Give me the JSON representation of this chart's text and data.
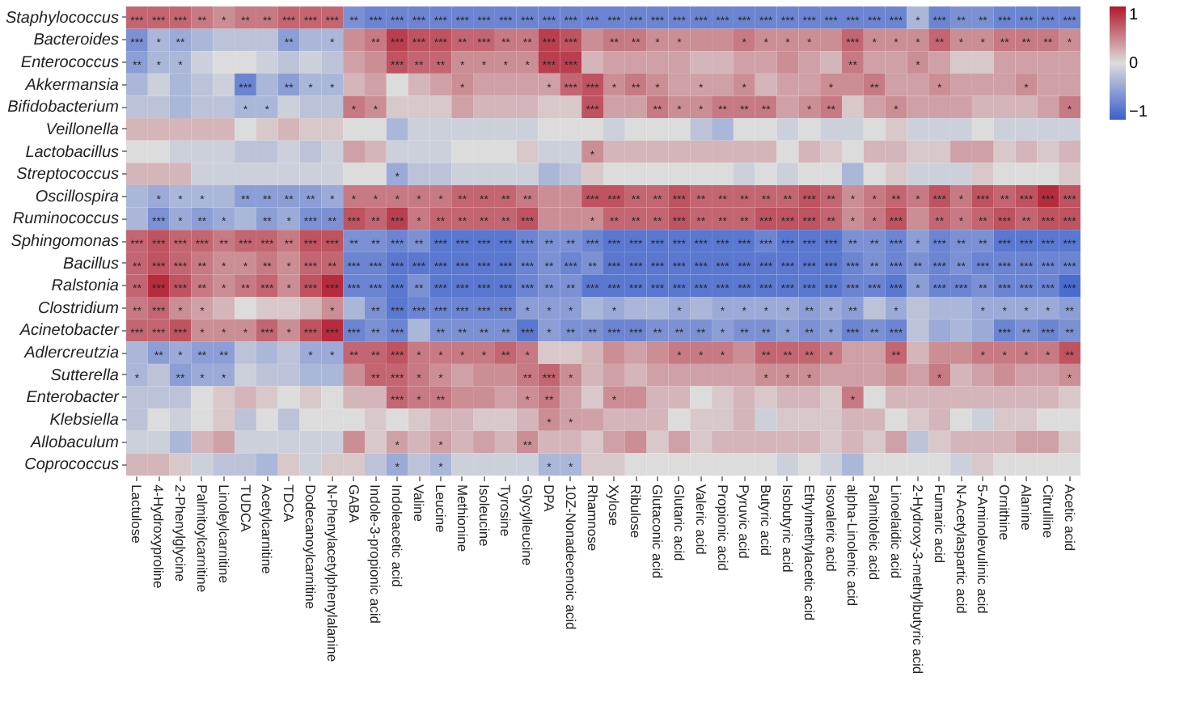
{
  "chart_data": {
    "type": "heatmap",
    "categories": [
      "Lactulose",
      "4-Hydroxyproline",
      "2-Phenylglycine",
      "Palmitoylcarnitine",
      "Linoleylcarnitine",
      "TUDCA",
      "Acetylcarnitine",
      "TDCA",
      "Dodecanoylcarnitine",
      "N-Phenylacetylphenylalanine",
      "GABA",
      "Indole-3-propionic acid",
      "Indoleacetic acid",
      "Valine",
      "Leucine",
      "Methionine",
      "Isoleucine",
      "Tyrosine",
      "Glycylleucine",
      "DPA",
      "10Z-Nonadecenoic acid",
      "Rhamnose",
      "Xylose",
      "Ribulose",
      "Glutaconic acid",
      "Glutaric acid",
      "Valeric acid",
      "Propionic acid",
      "Pyruvic acid",
      "Butyric acid",
      "Isobutyric acid",
      "Ethylmethylacetic acid",
      "Isovaleric acid",
      "alpha-Linolenic acid",
      "Palmitoleic acid",
      "Linoelaidic acid",
      "2-Hydroxy-3-methylbutyric acid",
      "Fumaric acid",
      "N-Acetylaspartic acid",
      "5-Aminolevulinic acid",
      "Ornithine",
      "Alanine",
      "Citrulline",
      "Acetic acid"
    ],
    "y_categories": [
      "Staphylococcus",
      "Bacteroides",
      "Enterococcus",
      "Akkermansia",
      "Bifidobacterium",
      "Veillonella",
      "Lactobacillus",
      "Streptococcus",
      "Oscillospira",
      "Ruminococcus",
      "Sphingomonas",
      "Bacillus",
      "Ralstonia",
      "Clostridium",
      "Acinetobacter",
      "Adlercreutzia",
      "Sutterella",
      "Enterobacter",
      "Klebsiella",
      "Allobaculum",
      "Coprococcus"
    ],
    "cells": [
      [
        0.6,
        0.6,
        0.6,
        0.5,
        0.4,
        0.5,
        0.5,
        0.6,
        0.6,
        0.6,
        -0.6,
        -0.7,
        -0.7,
        -0.7,
        -0.7,
        -0.7,
        -0.7,
        -0.7,
        -0.7,
        -0.7,
        -0.7,
        -0.7,
        -0.7,
        -0.7,
        -0.7,
        -0.7,
        -0.7,
        -0.7,
        -0.7,
        -0.7,
        -0.7,
        -0.7,
        -0.7,
        -0.7,
        -0.7,
        -0.7,
        -0.3,
        -0.7,
        -0.6,
        -0.6,
        -0.7,
        -0.7,
        -0.7,
        -0.7
      ],
      [
        -0.6,
        -0.3,
        -0.4,
        -0.3,
        -0.2,
        -0.2,
        -0.2,
        -0.5,
        -0.3,
        -0.3,
        0.4,
        0.5,
        0.8,
        0.7,
        0.7,
        0.6,
        0.6,
        0.5,
        0.5,
        0.8,
        0.7,
        0.4,
        0.5,
        0.5,
        0.4,
        0.4,
        0.4,
        0.4,
        0.5,
        0.4,
        0.4,
        0.4,
        0.4,
        0.6,
        0.4,
        0.4,
        0.4,
        0.6,
        0.4,
        0.4,
        0.5,
        0.5,
        0.5,
        0.4
      ],
      [
        -0.5,
        -0.3,
        -0.3,
        -0.1,
        0,
        0,
        -0.1,
        -0.2,
        -0.1,
        -0.2,
        0.3,
        0.4,
        0.7,
        0.6,
        0.6,
        0.4,
        0.4,
        0.4,
        0.4,
        0.8,
        0.8,
        0.2,
        0.3,
        0.3,
        0.3,
        0.3,
        0.2,
        0.2,
        0.3,
        0.3,
        0.4,
        0.3,
        0.2,
        0.5,
        0.3,
        0.3,
        0.4,
        0.3,
        0.1,
        0.1,
        0.3,
        0.3,
        0.3,
        0.3
      ],
      [
        -0.3,
        -0.1,
        -0.3,
        -0.2,
        -0.1,
        -0.7,
        -0.3,
        -0.5,
        -0.3,
        -0.3,
        0.2,
        0.3,
        0,
        0.2,
        0.3,
        0.4,
        0.3,
        0.3,
        0.3,
        0.3,
        0.6,
        0.7,
        0.4,
        0.5,
        0.4,
        0.3,
        0.3,
        0.3,
        0.4,
        0.2,
        0.3,
        0.3,
        0.4,
        0.4,
        0.5,
        0.3,
        0.3,
        0.4,
        0.3,
        0.3,
        0.3,
        0.4,
        0.3,
        0.3
      ],
      [
        -0.2,
        -0.2,
        -0.3,
        -0.2,
        -0.2,
        -0.3,
        -0.3,
        -0.1,
        -0.2,
        -0.2,
        0.5,
        0.4,
        0.1,
        0.1,
        0.1,
        0.3,
        0.2,
        0.2,
        0.2,
        0.1,
        0.1,
        0.7,
        0.3,
        0.3,
        0.5,
        0.4,
        0.4,
        0.5,
        0.5,
        0.5,
        0.3,
        0.4,
        0.5,
        0.1,
        0.3,
        0.4,
        0.3,
        0.3,
        0.3,
        0.2,
        0.2,
        0.2,
        0.3,
        0.5
      ],
      [
        0.2,
        0.2,
        0.2,
        0.2,
        0.2,
        0,
        0.1,
        0.2,
        0.1,
        0.1,
        0,
        0,
        -0.3,
        -0.1,
        -0.1,
        -0.1,
        -0.1,
        -0.1,
        -0.1,
        0,
        0,
        0,
        -0.1,
        0,
        0,
        0,
        -0.2,
        -0.3,
        0,
        0,
        -0.1,
        0,
        -0.1,
        -0.1,
        0,
        0.1,
        -0.1,
        -0.1,
        -0.1,
        0,
        -0.1,
        -0.1,
        -0.1,
        -0.1
      ],
      [
        0,
        0,
        -0.1,
        -0.1,
        -0.1,
        -0.2,
        -0.2,
        -0.1,
        -0.2,
        -0.1,
        0.3,
        0.2,
        -0.1,
        -0.1,
        -0.1,
        0,
        0,
        0,
        0.1,
        -0.1,
        -0.1,
        0.4,
        0.2,
        0.2,
        0.2,
        0.2,
        0.2,
        0.2,
        0.2,
        0.2,
        0,
        0.2,
        0.1,
        0,
        0.2,
        0.2,
        0.1,
        0.1,
        0.3,
        0.3,
        0.1,
        0.2,
        0.1,
        0.2
      ],
      [
        0.2,
        0.2,
        0.2,
        -0.1,
        -0.1,
        -0.1,
        -0.1,
        -0.1,
        -0.1,
        -0.1,
        0,
        0,
        -0.4,
        -0.2,
        -0.2,
        -0.1,
        -0.1,
        -0.1,
        -0.1,
        -0.3,
        -0.2,
        0.1,
        0,
        0,
        0,
        0,
        0,
        0,
        -0.1,
        0,
        -0.1,
        0,
        0,
        -0.3,
        0,
        0.1,
        -0.1,
        -0.1,
        -0.1,
        0.1,
        0,
        0,
        0,
        0.1
      ],
      [
        -0.3,
        -0.4,
        -0.3,
        -0.3,
        -0.3,
        -0.5,
        -0.5,
        -0.5,
        -0.5,
        -0.4,
        0.5,
        0.5,
        0.5,
        0.5,
        0.5,
        0.6,
        0.6,
        0.6,
        0.5,
        0.4,
        0.4,
        0.7,
        0.7,
        0.6,
        0.6,
        0.7,
        0.6,
        0.6,
        0.6,
        0.6,
        0.6,
        0.7,
        0.6,
        0.4,
        0.5,
        0.6,
        0.5,
        0.7,
        0.5,
        0.7,
        0.6,
        0.7,
        0.9,
        0.7
      ],
      [
        -0.3,
        -0.6,
        -0.4,
        -0.5,
        -0.4,
        -0.3,
        -0.5,
        -0.4,
        -0.6,
        -0.6,
        0.7,
        0.6,
        0.8,
        0.5,
        0.6,
        0.6,
        0.6,
        0.6,
        0.7,
        0.4,
        0.4,
        0.4,
        0.6,
        0.6,
        0.6,
        0.7,
        0.6,
        0.6,
        0.6,
        0.7,
        0.7,
        0.7,
        0.6,
        0.4,
        0.5,
        0.7,
        0.4,
        0.6,
        0.5,
        0.6,
        0.7,
        0.6,
        0.7,
        0.7
      ],
      [
        0.6,
        0.7,
        0.6,
        0.6,
        0.5,
        0.6,
        0.6,
        0.5,
        0.7,
        0.7,
        -0.6,
        -0.6,
        -0.7,
        -0.6,
        -0.8,
        -0.8,
        -0.8,
        -0.8,
        -0.7,
        -0.6,
        -0.6,
        -0.7,
        -0.8,
        -0.8,
        -0.8,
        -0.8,
        -0.8,
        -0.8,
        -0.8,
        -0.7,
        -0.8,
        -0.8,
        -0.8,
        -0.6,
        -0.6,
        -0.7,
        -0.5,
        -0.7,
        -0.6,
        -0.6,
        -0.8,
        -0.8,
        -0.8,
        -0.8
      ],
      [
        0.6,
        0.7,
        0.6,
        0.5,
        0.4,
        0.4,
        0.5,
        0.4,
        0.6,
        0.6,
        -0.7,
        -0.7,
        -0.8,
        -0.8,
        -0.8,
        -0.8,
        -0.8,
        -0.8,
        -0.7,
        -0.6,
        -0.7,
        -0.6,
        -0.8,
        -0.8,
        -0.8,
        -0.8,
        -0.8,
        -0.8,
        -0.8,
        -0.8,
        -0.8,
        -0.8,
        -0.8,
        -0.7,
        -0.6,
        -0.7,
        -0.6,
        -0.7,
        -0.6,
        -0.7,
        -0.7,
        -0.7,
        -0.7,
        -0.7
      ],
      [
        0.6,
        0.9,
        0.7,
        0.5,
        0.4,
        0.5,
        0.6,
        0.4,
        0.7,
        0.9,
        -0.7,
        -0.7,
        -0.8,
        -0.6,
        -0.8,
        -0.8,
        -0.8,
        -0.8,
        -0.7,
        -0.6,
        -0.6,
        -0.8,
        -0.8,
        -0.8,
        -0.8,
        -0.8,
        -0.8,
        -0.8,
        -0.8,
        -0.8,
        -0.8,
        -0.8,
        -0.8,
        -0.7,
        -0.7,
        -0.8,
        -0.5,
        -0.7,
        -0.7,
        -0.6,
        -0.7,
        -0.7,
        -0.7,
        -0.9
      ],
      [
        0.5,
        0.6,
        0.4,
        0.3,
        0.2,
        0,
        0.1,
        0.1,
        0.2,
        0.4,
        -0.3,
        -0.6,
        -0.8,
        -0.7,
        -0.7,
        -0.7,
        -0.7,
        -0.7,
        -0.5,
        -0.5,
        -0.5,
        -0.3,
        -0.4,
        -0.3,
        -0.3,
        -0.4,
        -0.3,
        -0.4,
        -0.4,
        -0.4,
        -0.4,
        -0.5,
        -0.4,
        -0.5,
        -0.2,
        -0.4,
        -0.2,
        -0.3,
        -0.3,
        -0.4,
        -0.4,
        -0.4,
        -0.4,
        -0.5
      ],
      [
        0.6,
        0.6,
        0.7,
        0.4,
        0.4,
        0.4,
        0.6,
        0.4,
        0.7,
        0.9,
        -0.7,
        -0.6,
        -0.7,
        -0.3,
        -0.6,
        -0.6,
        -0.6,
        -0.6,
        -0.8,
        -0.5,
        -0.6,
        -0.6,
        -0.7,
        -0.7,
        -0.6,
        -0.6,
        -0.6,
        -0.5,
        -0.6,
        -0.6,
        -0.5,
        -0.6,
        -0.5,
        -0.7,
        -0.6,
        -0.7,
        -0.2,
        -0.4,
        -0.3,
        -0.4,
        -0.7,
        -0.6,
        -0.7,
        -0.6
      ],
      [
        -0.3,
        -0.5,
        -0.4,
        -0.5,
        -0.5,
        -0.2,
        -0.3,
        -0.2,
        -0.4,
        -0.4,
        0.6,
        0.6,
        0.7,
        0.5,
        0.5,
        0.5,
        0.5,
        0.6,
        0.5,
        0.1,
        0.1,
        0.2,
        0.4,
        0.3,
        0.4,
        0.5,
        0.5,
        0.5,
        0.4,
        0.6,
        0.6,
        0.6,
        0.5,
        0.3,
        0.3,
        0.6,
        0.2,
        0.4,
        0.4,
        0.5,
        0.5,
        0.5,
        0.5,
        0.7
      ],
      [
        -0.3,
        -0.2,
        -0.5,
        -0.4,
        -0.4,
        -0.1,
        -0.2,
        -0.2,
        -0.3,
        -0.3,
        0.4,
        0.6,
        0.6,
        0.5,
        0.4,
        0.3,
        0.4,
        0.4,
        0.5,
        0.6,
        0.4,
        0.2,
        0.3,
        0.2,
        0.3,
        0.3,
        0.3,
        0.3,
        0.3,
        0.4,
        0.4,
        0.4,
        0.3,
        0.3,
        0.3,
        0.4,
        0.3,
        0.5,
        0.2,
        0.3,
        0.4,
        0.3,
        0.3,
        0.4
      ],
      [
        -0.2,
        -0.2,
        -0.2,
        0,
        0.1,
        0.2,
        0.1,
        0,
        0.1,
        0,
        0.2,
        0.2,
        0.6,
        0.5,
        0.5,
        0.4,
        0.4,
        0.3,
        0.4,
        0.5,
        0.3,
        0.1,
        0.4,
        0.4,
        0.2,
        0.2,
        0,
        0.1,
        0.2,
        0.1,
        0.2,
        0.2,
        0.1,
        0.5,
        0,
        0.2,
        0.2,
        0.2,
        0.2,
        0.2,
        0.2,
        0.2,
        0.2,
        0.1
      ],
      [
        -0.2,
        0,
        -0.1,
        0,
        0.1,
        -0.2,
        0,
        -0.2,
        0,
        0,
        0,
        0.1,
        0,
        0.1,
        0.2,
        0.2,
        0.1,
        0.1,
        0.2,
        0.4,
        0.3,
        0.3,
        0.2,
        0.2,
        0.2,
        0,
        0.1,
        0.1,
        0.2,
        -0.1,
        0.1,
        0.1,
        0.1,
        0.2,
        0.2,
        0,
        0.1,
        0.2,
        0,
        -0.1,
        0.1,
        0.1,
        0,
        0
      ],
      [
        -0.1,
        -0.1,
        -0.3,
        0.2,
        0.3,
        -0.1,
        -0.1,
        -0.1,
        -0.1,
        -0.1,
        0.4,
        0.1,
        0.3,
        0.2,
        0.3,
        0.2,
        0.3,
        0.2,
        0.4,
        0.2,
        0.2,
        0.1,
        0.3,
        0.4,
        0.1,
        0.3,
        0.1,
        0.2,
        0.2,
        0.2,
        0.2,
        0.2,
        0.1,
        0.2,
        0.1,
        0.3,
        -0.2,
        0.1,
        0.2,
        0.2,
        0.2,
        0.3,
        0.3,
        0.1
      ],
      [
        0.2,
        0.2,
        0.1,
        -0.1,
        -0.2,
        -0.2,
        -0.3,
        0.1,
        -0.1,
        0.1,
        0.1,
        -0.2,
        -0.4,
        -0.2,
        -0.3,
        -0.1,
        -0.1,
        -0.1,
        -0.1,
        -0.3,
        -0.3,
        0.1,
        0.1,
        0,
        0,
        0,
        0,
        0,
        0,
        0,
        -0.1,
        0,
        -0.1,
        -0.3,
        0,
        0,
        0,
        0,
        -0.1,
        0.1,
        0,
        0,
        0,
        0
      ]
    ],
    "cell_labels": [
      [
        "***",
        "***",
        "***",
        "**",
        "*",
        "**",
        "**",
        "***",
        "***",
        "***",
        "**",
        "***",
        "***",
        "***",
        "***",
        "***",
        "***",
        "***",
        "***",
        "***",
        "***",
        "***",
        "***",
        "***",
        "***",
        "***",
        "***",
        "***",
        "***",
        "***",
        "***",
        "***",
        "***",
        "***",
        "***",
        "***",
        "*",
        "***",
        "**",
        "**",
        "***",
        "***",
        "***",
        "***"
      ],
      [
        "***",
        "*",
        "**",
        null,
        null,
        null,
        null,
        "**",
        null,
        "*",
        null,
        "**",
        "***",
        "***",
        "***",
        "**",
        "***",
        "**",
        "**",
        "***",
        "***",
        null,
        "**",
        "**",
        "*",
        "*",
        null,
        null,
        "*",
        "*",
        "*",
        "*",
        null,
        "***",
        "*",
        "*",
        "*",
        "**",
        "*",
        "*",
        "**",
        "**",
        "**",
        "*"
      ],
      [
        "**",
        "*",
        "*",
        null,
        null,
        null,
        null,
        null,
        null,
        null,
        null,
        null,
        "***",
        "**",
        "**",
        "*",
        "*",
        "*",
        "*",
        "***",
        "***",
        null,
        null,
        null,
        null,
        null,
        null,
        null,
        null,
        null,
        null,
        null,
        null,
        "**",
        null,
        null,
        "*",
        null,
        null,
        null,
        null,
        null,
        null,
        null
      ],
      [
        null,
        null,
        null,
        null,
        null,
        "***",
        null,
        "**",
        "*",
        "*",
        null,
        null,
        null,
        null,
        null,
        "*",
        null,
        null,
        null,
        "*",
        "***",
        "***",
        "*",
        "**",
        "*",
        null,
        "*",
        null,
        "*",
        null,
        null,
        null,
        "*",
        null,
        "**",
        null,
        null,
        "*",
        null,
        null,
        null,
        "*",
        null,
        null
      ],
      [
        null,
        null,
        null,
        null,
        null,
        "*",
        "*",
        null,
        null,
        null,
        "*",
        "*",
        null,
        null,
        null,
        null,
        null,
        null,
        null,
        null,
        null,
        "***",
        null,
        null,
        "**",
        "*",
        "*",
        "**",
        "**",
        "**",
        null,
        "*",
        "**",
        null,
        null,
        "*",
        null,
        null,
        null,
        null,
        null,
        null,
        null,
        "*"
      ],
      [
        null,
        null,
        null,
        null,
        null,
        null,
        null,
        null,
        null,
        null,
        null,
        null,
        null,
        null,
        null,
        null,
        null,
        null,
        null,
        null,
        null,
        null,
        null,
        null,
        null,
        null,
        null,
        null,
        null,
        null,
        null,
        null,
        null,
        null,
        null,
        null,
        null,
        null,
        null,
        null,
        null,
        null,
        null,
        null
      ],
      [
        null,
        null,
        null,
        null,
        null,
        null,
        null,
        null,
        null,
        null,
        null,
        null,
        null,
        null,
        null,
        null,
        null,
        null,
        null,
        null,
        null,
        "*",
        null,
        null,
        null,
        null,
        null,
        null,
        null,
        null,
        null,
        null,
        null,
        null,
        null,
        null,
        null,
        null,
        null,
        null,
        null,
        null,
        null,
        null
      ],
      [
        null,
        null,
        null,
        null,
        null,
        null,
        null,
        null,
        null,
        null,
        null,
        null,
        "*",
        null,
        null,
        null,
        null,
        null,
        null,
        null,
        null,
        null,
        null,
        null,
        null,
        null,
        null,
        null,
        null,
        null,
        null,
        null,
        null,
        null,
        null,
        null,
        null,
        null,
        null,
        null,
        null,
        null,
        null,
        null
      ],
      [
        null,
        "*",
        "*",
        "*",
        null,
        "**",
        "**",
        "**",
        "**",
        "*",
        "*",
        "*",
        "*",
        "*",
        "*",
        "**",
        "**",
        "**",
        "**",
        null,
        null,
        "***",
        "***",
        "**",
        "**",
        "***",
        "**",
        "**",
        "**",
        "**",
        "**",
        "***",
        "**",
        "*",
        "*",
        "**",
        "*",
        "***",
        "*",
        "***",
        "**",
        "***",
        "***",
        "***"
      ],
      [
        null,
        "***",
        "*",
        "**",
        "*",
        null,
        "**",
        "*",
        "***",
        "**",
        "***",
        "**",
        "***",
        "*",
        "**",
        "**",
        "**",
        "**",
        "***",
        null,
        null,
        "*",
        "**",
        "**",
        "**",
        "***",
        "**",
        "**",
        "**",
        "***",
        "***",
        "***",
        "**",
        "*",
        "*",
        "***",
        null,
        "**",
        "*",
        "**",
        "***",
        "**",
        "***",
        "***"
      ],
      [
        "***",
        "***",
        "***",
        "***",
        "**",
        "***",
        "***",
        "**",
        "***",
        "***",
        "**",
        "**",
        "***",
        "**",
        "***",
        "***",
        "***",
        "***",
        "***",
        "**",
        "**",
        "***",
        "***",
        "***",
        "***",
        "***",
        "***",
        "***",
        "***",
        "***",
        "***",
        "***",
        "***",
        "**",
        "**",
        "***",
        "*",
        "***",
        "**",
        "**",
        "***",
        "***",
        "***",
        "***"
      ],
      [
        "**",
        "***",
        "***",
        "**",
        "*",
        "*",
        "**",
        "*",
        "***",
        "**",
        "***",
        "***",
        "***",
        "***",
        "***",
        "***",
        "***",
        "***",
        "***",
        "**",
        "***",
        "**",
        "***",
        "***",
        "***",
        "***",
        "***",
        "***",
        "***",
        "***",
        "***",
        "***",
        "***",
        "***",
        "**",
        "***",
        "**",
        "***",
        "**",
        "***",
        "***",
        "***",
        "***",
        "***"
      ],
      [
        "**",
        "***",
        "***",
        "**",
        "*",
        "**",
        "***",
        "*",
        "***",
        "***",
        "***",
        "***",
        "***",
        "**",
        "***",
        "***",
        "***",
        "***",
        "***",
        "**",
        "**",
        "***",
        "***",
        "***",
        "***",
        "***",
        "***",
        "***",
        "***",
        "***",
        "***",
        "***",
        "***",
        "***",
        "***",
        "***",
        "*",
        "***",
        "***",
        "**",
        "***",
        "***",
        "***",
        "***"
      ],
      [
        "**",
        "***",
        "*",
        "*",
        null,
        null,
        null,
        null,
        null,
        "*",
        null,
        "**",
        "***",
        "***",
        "***",
        "***",
        "***",
        "***",
        "*",
        "*",
        "*",
        null,
        "*",
        null,
        null,
        "*",
        null,
        "*",
        "*",
        "*",
        "*",
        "**",
        "*",
        "**",
        null,
        "*",
        null,
        null,
        null,
        "*",
        "*",
        "*",
        "*",
        "**"
      ],
      [
        "***",
        "***",
        "***",
        "*",
        "*",
        "*",
        "***",
        "*",
        "***",
        "***",
        "***",
        "**",
        "***",
        null,
        "**",
        "**",
        "**",
        "**",
        "***",
        "*",
        "**",
        "**",
        "***",
        "***",
        "**",
        "**",
        "**",
        "*",
        "**",
        "**",
        "*",
        "**",
        "*",
        "***",
        "**",
        "***",
        null,
        null,
        null,
        null,
        "***",
        "**",
        "***",
        "**"
      ],
      [
        null,
        "**",
        "*",
        "**",
        "**",
        null,
        null,
        null,
        "*",
        "*",
        "**",
        "**",
        "***",
        "*",
        "*",
        "*",
        "*",
        "**",
        "*",
        null,
        null,
        null,
        null,
        null,
        null,
        "*",
        "*",
        "*",
        null,
        "**",
        "**",
        "**",
        "*",
        null,
        null,
        "**",
        null,
        null,
        null,
        "*",
        "*",
        "*",
        "*",
        "**"
      ],
      [
        "*",
        null,
        "**",
        "*",
        "*",
        null,
        null,
        null,
        null,
        null,
        null,
        "**",
        "***",
        "*",
        "*",
        null,
        null,
        null,
        "**",
        "***",
        "*",
        null,
        null,
        null,
        null,
        null,
        null,
        null,
        null,
        "*",
        "*",
        "*",
        null,
        null,
        null,
        null,
        null,
        "*",
        null,
        null,
        null,
        null,
        null,
        "*"
      ],
      [
        null,
        null,
        null,
        null,
        null,
        null,
        null,
        null,
        null,
        null,
        null,
        null,
        "***",
        "*",
        "**",
        null,
        null,
        null,
        "*",
        "**",
        null,
        null,
        "*",
        null,
        null,
        null,
        null,
        null,
        null,
        null,
        null,
        null,
        null,
        "*",
        null,
        null,
        null,
        null,
        null,
        null,
        null,
        null,
        null,
        null
      ],
      [
        null,
        null,
        null,
        null,
        null,
        null,
        null,
        null,
        null,
        null,
        null,
        null,
        null,
        null,
        null,
        null,
        null,
        null,
        null,
        "*",
        "*",
        null,
        null,
        null,
        null,
        null,
        null,
        null,
        null,
        null,
        null,
        null,
        null,
        null,
        null,
        null,
        null,
        null,
        null,
        null,
        null,
        null,
        null,
        null
      ],
      [
        null,
        null,
        null,
        null,
        null,
        null,
        null,
        null,
        null,
        null,
        null,
        null,
        "*",
        null,
        "*",
        null,
        null,
        null,
        "**",
        null,
        null,
        null,
        null,
        null,
        null,
        null,
        null,
        null,
        null,
        null,
        null,
        null,
        null,
        null,
        null,
        null,
        null,
        null,
        null,
        null,
        null,
        null,
        null,
        null
      ],
      [
        null,
        null,
        null,
        null,
        null,
        null,
        null,
        null,
        null,
        null,
        null,
        null,
        "*",
        null,
        "*",
        null,
        null,
        null,
        null,
        "*",
        "*",
        null,
        null,
        null,
        null,
        null,
        null,
        null,
        null,
        null,
        null,
        null,
        null,
        null,
        null,
        null,
        null,
        null,
        null,
        null,
        null,
        null,
        null,
        null
      ]
    ],
    "clim": [
      -1,
      1
    ],
    "cticks": [
      -1,
      0,
      1
    ]
  }
}
